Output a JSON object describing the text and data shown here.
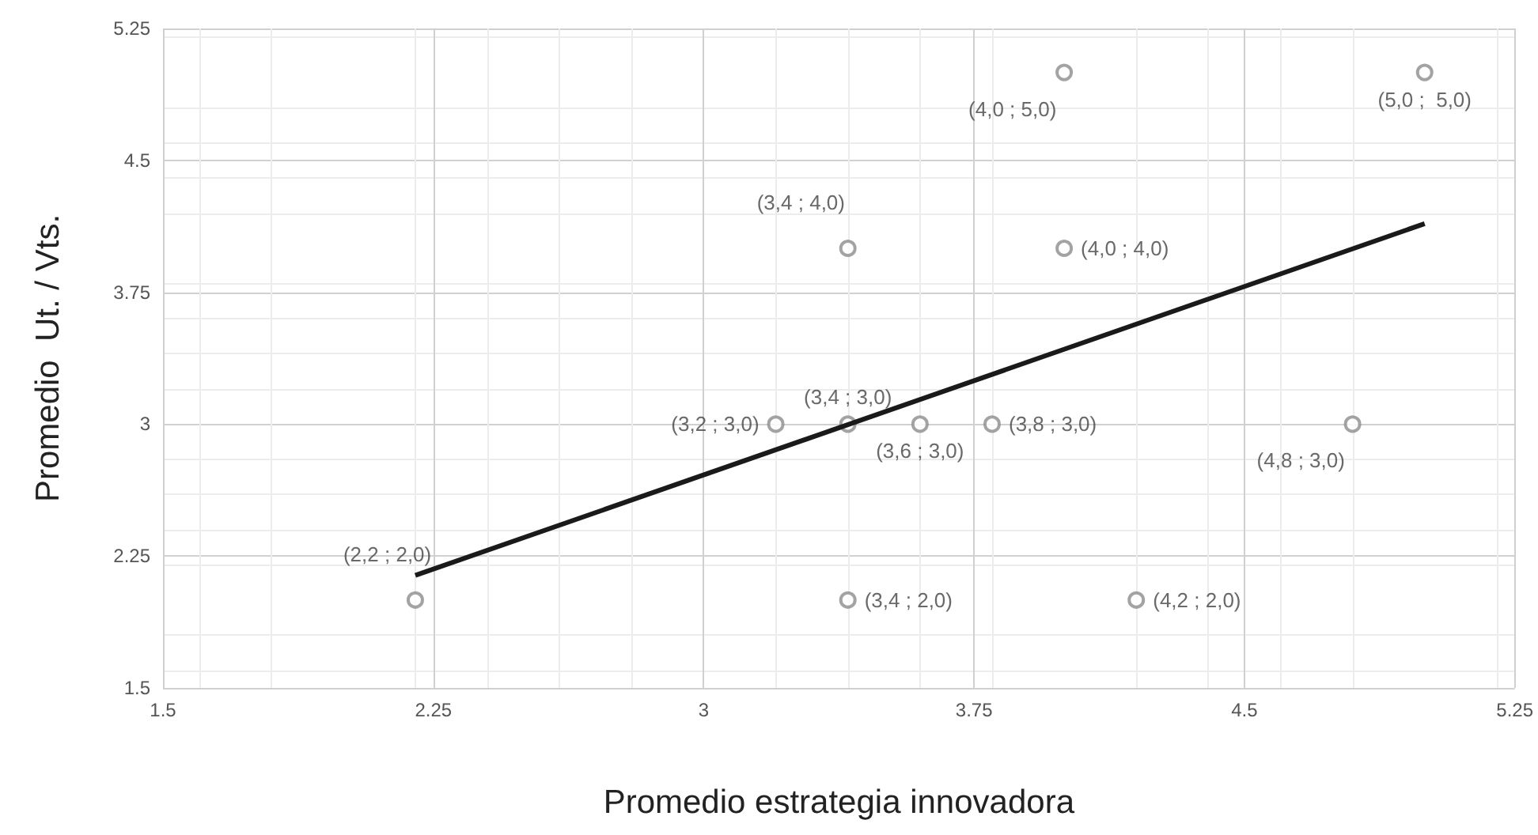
{
  "chart_data": {
    "type": "scatter",
    "xlabel": "Promedio estrategia innovadora",
    "ylabel": "Promedio  Ut. / Vts.",
    "xlim": [
      1.5,
      5.25
    ],
    "xticks": [
      1.5,
      2.25,
      3,
      3.75,
      4.5,
      5.25
    ],
    "ylim": [
      1.5,
      5.25
    ],
    "yticks": [
      1.5,
      2.25,
      3,
      3.75,
      4.5,
      5.25
    ],
    "grid": true,
    "marker": "circle",
    "series": [
      {
        "color": "#8c8c8c",
        "x": [
          2.2,
          3.2,
          3.4,
          3.4,
          3.4,
          3.6,
          3.8,
          4.0,
          4.0,
          4.2,
          4.8,
          5.0
        ],
        "values": [
          2.0,
          3.0,
          3.0,
          4.0,
          2.0,
          3.0,
          3.0,
          5.0,
          4.0,
          2.0,
          3.0,
          5.0
        ],
        "value_labels": [
          "(2,2 ; 2,0)",
          "(3,2 ; 3,0)",
          "(3,4 ; 3,0)",
          "(3,4 ; 4,0)",
          "(3,4 ; 2,0)",
          "(3,6 ; 3,0)",
          "(3,8 ; 3,0)",
          "(4,0 ; 5,0)",
          "(4,0 ; 4,0)",
          "(4,2 ; 2,0)",
          "(4,8 ; 3,0)",
          "(5,0 ;  5,0)"
        ]
      },
      {
        "type": "line",
        "color": "#1a1a1a",
        "marker": "none",
        "line_style": "solid",
        "x": [
          2.2,
          5.0
        ],
        "values": [
          2.14,
          4.14
        ]
      }
    ]
  }
}
